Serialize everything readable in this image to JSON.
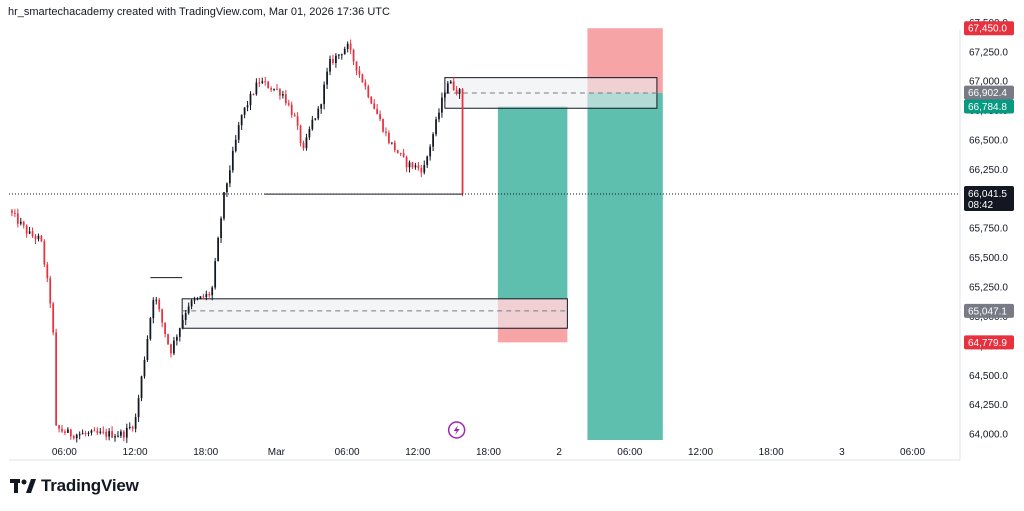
{
  "header": {
    "attribution": "hr_smartechacademy created with TradingView.com, Mar 01, 2026 17:36 UTC"
  },
  "brand": {
    "name": "TradingView",
    "icon": "tradingview-logo-icon"
  },
  "colors": {
    "bull": "#131722",
    "bear": "#e8313f",
    "target": "#5ebfae",
    "stop": "#f7a4a7",
    "zone_fill": "#eceef0",
    "price_line": "#131722"
  },
  "chart_data": {
    "type": "candlestick",
    "title": "",
    "xlabel": "",
    "ylabel": "",
    "ylim": [
      63950,
      67520
    ],
    "y_ticks": [
      "64,000.0",
      "64,250.0",
      "64,500.0",
      "64,750.0",
      "65,000.0",
      "65,250.0",
      "65,500.0",
      "65,750.0",
      "66,000.0",
      "66,250.0",
      "66,500.0",
      "66,750.0",
      "67,000.0",
      "67,250.0",
      "67,500.0"
    ],
    "y_tick_values": [
      64000,
      64250,
      64500,
      64750,
      65000,
      65250,
      65500,
      65750,
      66000,
      66250,
      66500,
      66750,
      67000,
      67250,
      67500
    ],
    "x_ticks": [
      "06:00",
      "12:00",
      "18:00",
      "Mar",
      "06:00",
      "12:00",
      "18:00",
      "2",
      "06:00",
      "12:00",
      "18:00",
      "3",
      "06:00"
    ],
    "x_tick_hours": [
      6,
      12,
      18,
      24,
      30,
      36,
      42,
      48,
      54,
      60,
      66,
      72,
      78
    ],
    "x_range_hours": [
      1.3,
      80.5
    ],
    "last_candle_hour": 39.8,
    "current_price": {
      "value": 66041.5,
      "label": "66,041.5",
      "countdown": "08:42"
    },
    "price_tags": [
      {
        "label": "67,450.0",
        "value": 67450,
        "color": "#e8313f"
      },
      {
        "label": "66,902.4",
        "value": 66902.4,
        "color": "#787b86"
      },
      {
        "label": "66,784.8",
        "value": 66784.8,
        "color": "#089981"
      },
      {
        "label": "65,047.1",
        "value": 65047.1,
        "color": "#787b86"
      },
      {
        "label": "64,779.9",
        "value": 64779.9,
        "color": "#e8313f"
      }
    ],
    "key_points": [
      [
        1.3,
        65900
      ],
      [
        3.0,
        65700
      ],
      [
        4.0,
        65650
      ],
      [
        5.0,
        65000
      ],
      [
        5.3,
        64050
      ],
      [
        6.5,
        64000
      ],
      [
        9.0,
        64000
      ],
      [
        11.0,
        64000
      ],
      [
        12.0,
        64100
      ],
      [
        13.6,
        65200
      ],
      [
        15.0,
        64700
      ],
      [
        16.5,
        65100
      ],
      [
        18.5,
        65200
      ],
      [
        19.5,
        66000
      ],
      [
        21.0,
        66700
      ],
      [
        22.5,
        67000
      ],
      [
        24.5,
        66900
      ],
      [
        25.5,
        66700
      ],
      [
        26.3,
        66400
      ],
      [
        27.0,
        66650
      ],
      [
        27.6,
        66750
      ],
      [
        28.5,
        67150
      ],
      [
        30.0,
        67300
      ],
      [
        32.0,
        66850
      ],
      [
        33.5,
        66500
      ],
      [
        35.0,
        66300
      ],
      [
        36.5,
        66250
      ],
      [
        38.5,
        67000
      ],
      [
        39.6,
        66900
      ],
      [
        39.8,
        66041.5
      ]
    ],
    "sr_lines": [
      {
        "from_hour": 23.0,
        "to_hour": 39.8,
        "value": 66040
      },
      {
        "from_hour": 13.3,
        "to_hour": 16.0,
        "value": 65330
      }
    ],
    "zones": [
      {
        "from_hour": 38.3,
        "to_hour": 56.3,
        "top": 67030,
        "bottom": 66770,
        "mid": 66900
      },
      {
        "from_hour": 16.0,
        "to_hour": 48.7,
        "top": 65150,
        "bottom": 64900,
        "mid": 65047.1
      }
    ],
    "positions": [
      {
        "type": "long",
        "from_hour": 42.8,
        "to_hour": 48.7,
        "entry": 65150,
        "target": 66784.8,
        "stop": 64779.9
      },
      {
        "type": "short",
        "from_hour": 50.4,
        "to_hour": 56.8,
        "entry": 66902.4,
        "target": 63950,
        "stop": 67450
      }
    ],
    "annotations": [
      {
        "type": "lightning-icon",
        "hour": 39.3,
        "value": 64000
      }
    ]
  }
}
